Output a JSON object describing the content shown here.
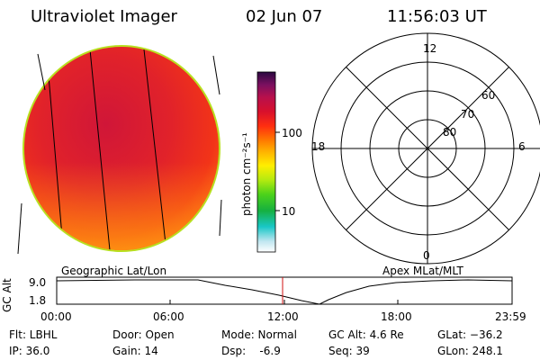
{
  "header": {
    "instrument": "Ultraviolet Imager",
    "date": "02 Jun 07",
    "time": "11:56:03 UT"
  },
  "colorbar": {
    "unit_label": "photon cm⁻²s⁻¹",
    "ticks": [
      "100",
      "10"
    ],
    "scale": "log"
  },
  "polar": {
    "mlt_labels": {
      "top": "12",
      "left": "18",
      "right": "6",
      "bottom": "0"
    },
    "lat_labels": [
      "60",
      "70",
      "80"
    ]
  },
  "timeline": {
    "ylabel": "GC Alt",
    "yticks": [
      "9.0",
      "1.8"
    ],
    "left_title": "Geographic Lat/Lon",
    "right_title": "Apex MLat/MLT",
    "xticks": [
      "00:00",
      "06:00",
      "12:00",
      "18:00",
      "23:59"
    ],
    "current_time_marker": "11:56"
  },
  "status": {
    "flt": "Flt: LBHL",
    "ip": "IP: 36.0",
    "door": "Door: Open",
    "gain": "Gain: 14",
    "mode": "Mode: Normal",
    "dsp": "Dsp:    -6.9",
    "gcalt": "GC Alt: 4.6 Re",
    "seq": "Seq: 39",
    "glat": "GLat: −36.2",
    "glon": "GLon: 248.1"
  }
}
